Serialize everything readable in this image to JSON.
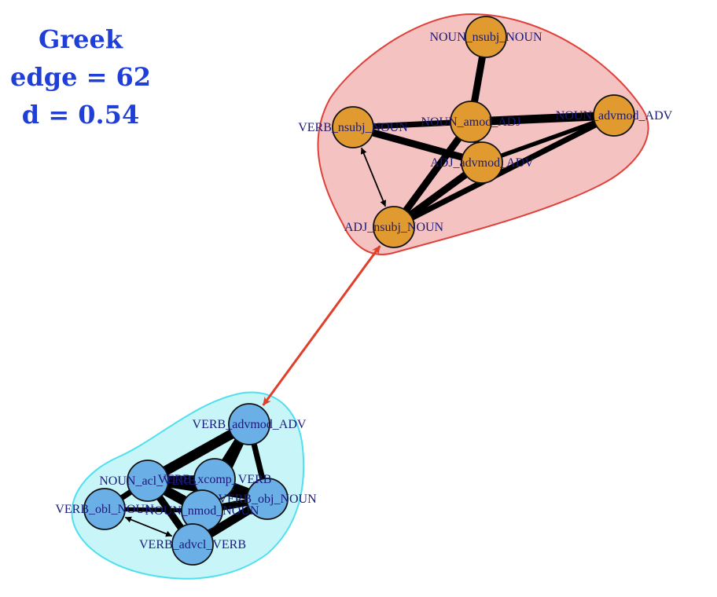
{
  "title": {
    "language": "Greek",
    "edges": "edge = 62",
    "density": "d = 0.54"
  },
  "colors": {
    "title": "#1f3fd6",
    "group1_fill": "#f5c2c2",
    "group1_stroke": "#e0403a",
    "group2_fill": "#c8f6f8",
    "group2_stroke": "#4fe0ef",
    "group1_node": "#e09a30",
    "group2_node": "#6aafe6",
    "label": "#1a1a7a",
    "edge": "#000000",
    "inter_edge": "#e0402a"
  },
  "nodes": [
    {
      "id": "NOUN_nsubj_NOUN",
      "label": "NOUN_nsubj_NOUN",
      "group": 1
    },
    {
      "id": "VERB_nsubj_NOUN",
      "label": "VERB_nsubj_NOUN",
      "group": 1
    },
    {
      "id": "NOUN_amod_ADJ",
      "label": "NOUN_amod_ADJ",
      "group": 1
    },
    {
      "id": "NOUN_advmod_ADV",
      "label": "NOUN_advmod_ADV",
      "group": 1
    },
    {
      "id": "ADJ_advmod_ADV",
      "label": "ADJ_advmod_ADV",
      "group": 1
    },
    {
      "id": "ADJ_nsubj_NOUN",
      "label": "ADJ_nsubj_NOUN",
      "group": 1
    },
    {
      "id": "VERB_advmod_ADV",
      "label": "VERB_advmod_ADV",
      "group": 2
    },
    {
      "id": "NOUN_acl_VERB",
      "label": "NOUN_acl_VERB",
      "group": 2
    },
    {
      "id": "VERB_xcomp_VERB",
      "label": "VERB_xcomp_VERB",
      "group": 2
    },
    {
      "id": "VERB_obj_NOUN",
      "label": "VERB_obj_NOUN",
      "group": 2
    },
    {
      "id": "VERB_obl_NOUN",
      "label": "VERB_obl_NOUN",
      "group": 2
    },
    {
      "id": "NOUN_nmod_NOUN",
      "label": "NOUN_nmod_NOUN",
      "group": 2
    },
    {
      "id": "VERB_advcl_VERB",
      "label": "VERB_advcl_VERB",
      "group": 2
    }
  ],
  "edges": [
    {
      "source": "NOUN_nsubj_NOUN",
      "target": "NOUN_amod_ADJ",
      "weight": 5
    },
    {
      "source": "VERB_nsubj_NOUN",
      "target": "NOUN_amod_ADJ",
      "weight": 4
    },
    {
      "source": "VERB_nsubj_NOUN",
      "target": "ADJ_advmod_ADV",
      "weight": 5
    },
    {
      "source": "VERB_nsubj_NOUN",
      "target": "ADJ_nsubj_NOUN",
      "weight": 1,
      "arrow": "both"
    },
    {
      "source": "NOUN_amod_ADJ",
      "target": "NOUN_advmod_ADV",
      "weight": 6
    },
    {
      "source": "NOUN_amod_ADJ",
      "target": "ADJ_advmod_ADV",
      "weight": 4
    },
    {
      "source": "NOUN_amod_ADJ",
      "target": "ADJ_nsubj_NOUN",
      "weight": 5
    },
    {
      "source": "NOUN_advmod_ADV",
      "target": "ADJ_advmod_ADV",
      "weight": 3
    },
    {
      "source": "NOUN_advmod_ADV",
      "target": "ADJ_nsubj_NOUN",
      "weight": 4
    },
    {
      "source": "ADJ_advmod_ADV",
      "target": "ADJ_nsubj_NOUN",
      "weight": 5
    },
    {
      "source": "VERB_advmod_ADV",
      "target": "NOUN_acl_VERB",
      "weight": 7
    },
    {
      "source": "VERB_advmod_ADV",
      "target": "VERB_xcomp_VERB",
      "weight": 6
    },
    {
      "source": "VERB_advmod_ADV",
      "target": "VERB_obj_NOUN",
      "weight": 4
    },
    {
      "source": "VERB_advmod_ADV",
      "target": "NOUN_nmod_NOUN",
      "weight": 5
    },
    {
      "source": "VERB_advmod_ADV",
      "target": "VERB_advcl_VERB",
      "weight": 5
    },
    {
      "source": "NOUN_acl_VERB",
      "target": "VERB_xcomp_VERB",
      "weight": 6
    },
    {
      "source": "NOUN_acl_VERB",
      "target": "NOUN_nmod_NOUN",
      "weight": 7
    },
    {
      "source": "NOUN_acl_VERB",
      "target": "VERB_advcl_VERB",
      "weight": 5
    },
    {
      "source": "NOUN_acl_VERB",
      "target": "VERB_obj_NOUN",
      "weight": 5
    },
    {
      "source": "VERB_xcomp_VERB",
      "target": "VERB_obj_NOUN",
      "weight": 5
    },
    {
      "source": "VERB_xcomp_VERB",
      "target": "NOUN_nmod_NOUN",
      "weight": 6
    },
    {
      "source": "VERB_xcomp_VERB",
      "target": "VERB_advcl_VERB",
      "weight": 5
    },
    {
      "source": "VERB_obj_NOUN",
      "target": "NOUN_nmod_NOUN",
      "weight": 5
    },
    {
      "source": "VERB_obj_NOUN",
      "target": "VERB_advcl_VERB",
      "weight": 6
    },
    {
      "source": "NOUN_nmod_NOUN",
      "target": "VERB_advcl_VERB",
      "weight": 6
    },
    {
      "source": "VERB_obl_NOUN",
      "target": "NOUN_acl_VERB",
      "weight": 4
    },
    {
      "source": "VERB_obl_NOUN",
      "target": "NOUN_nmod_NOUN",
      "weight": 3
    },
    {
      "source": "VERB_obl_NOUN",
      "target": "VERB_advcl_VERB",
      "weight": 1,
      "arrow": "both"
    }
  ],
  "inter_edge": {
    "source": "ADJ_nsubj_NOUN",
    "target": "VERB_advmod_ADV",
    "arrow": "both"
  }
}
